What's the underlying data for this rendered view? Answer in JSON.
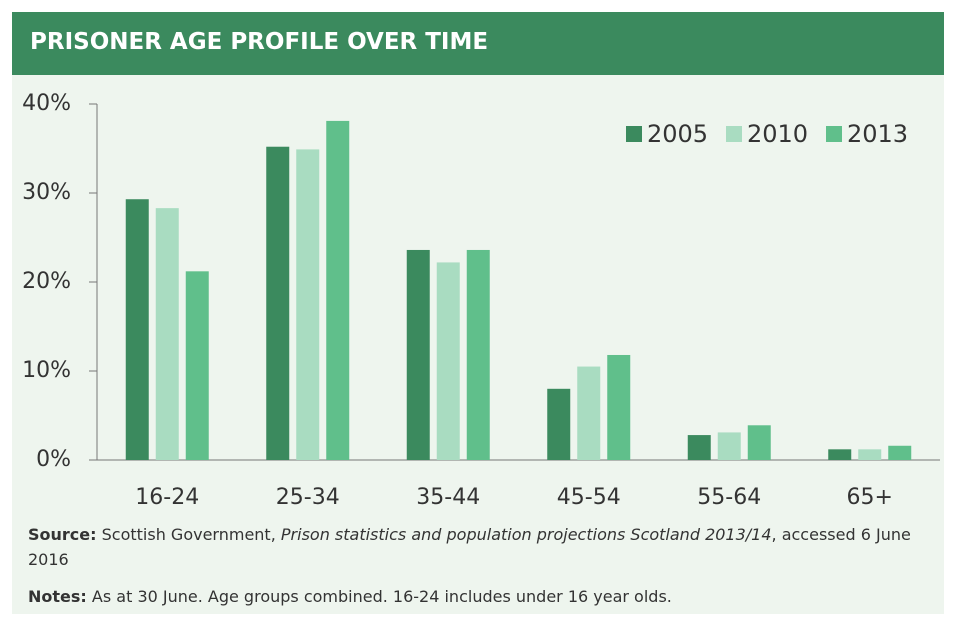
{
  "chart_data": {
    "type": "bar",
    "title": "PRISONER AGE PROFILE OVER TIME",
    "categories": [
      "16-24",
      "25-34",
      "35-44",
      "45-54",
      "55-64",
      "65+"
    ],
    "series": [
      {
        "name": "2005",
        "color": "#3b8a5e",
        "values": [
          29.3,
          35.2,
          23.6,
          8.0,
          2.8,
          1.2
        ]
      },
      {
        "name": "2010",
        "color": "#a9dcc1",
        "values": [
          28.3,
          34.9,
          22.2,
          10.5,
          3.1,
          1.2
        ]
      },
      {
        "name": "2013",
        "color": "#60bf8b",
        "values": [
          21.2,
          38.1,
          23.6,
          11.8,
          3.9,
          1.6
        ]
      }
    ],
    "ylim": [
      0,
      40
    ],
    "yticks": [
      {
        "value": 0,
        "label": "0%"
      },
      {
        "value": 10,
        "label": "10%"
      },
      {
        "value": 20,
        "label": "20%"
      },
      {
        "value": 30,
        "label": "30%"
      },
      {
        "value": 40,
        "label": "40%"
      }
    ],
    "grid": false,
    "legend": "upper right",
    "source": {
      "label": "Source:",
      "text": "Scottish Government,",
      "title": "Prison statistics and population projections Scotland 2013/14",
      "tail": ", accessed 6 June 2016"
    },
    "notes": {
      "label": "Notes:",
      "text": "As at 30 June. Age groups combined. 16-24 includes under 16 year olds."
    }
  }
}
